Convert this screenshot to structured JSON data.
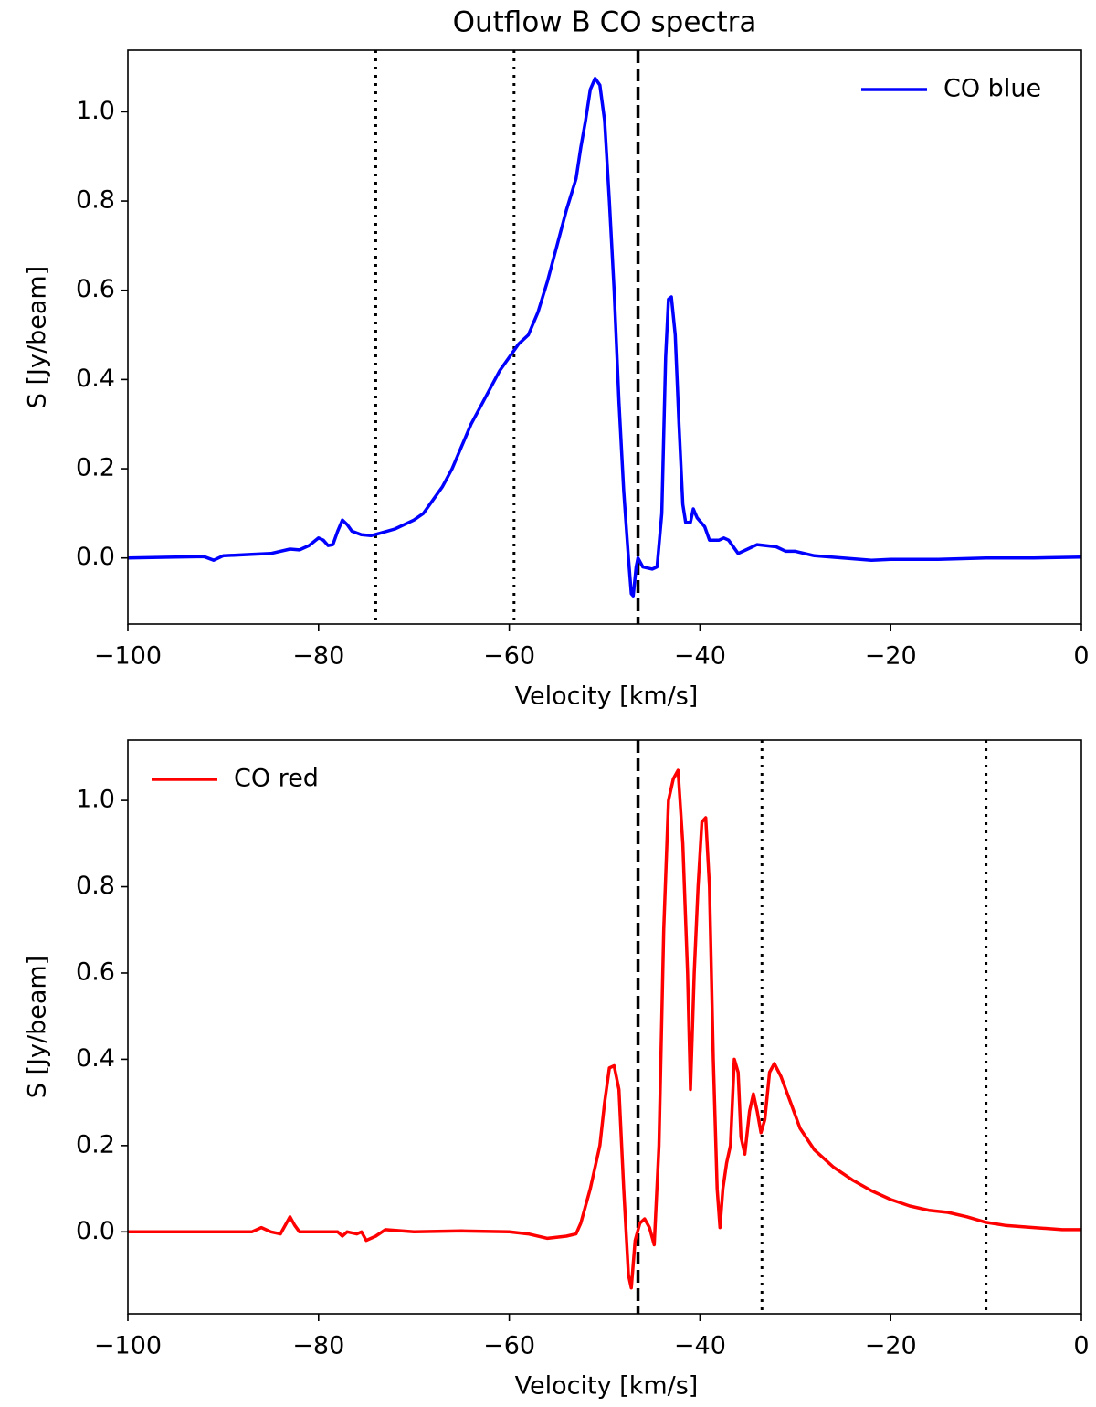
{
  "chart_data": [
    {
      "type": "line",
      "title": "Outflow B CO spectra",
      "xlabel": "Velocity [km/s]",
      "ylabel": "S [Jy/beam]",
      "xlim": [
        -100,
        0
      ],
      "ylim": [
        -0.148,
        1.138
      ],
      "xticks": [
        {
          "value": -100,
          "label": "−100"
        },
        {
          "value": -80,
          "label": "−80"
        },
        {
          "value": -60,
          "label": "−60"
        },
        {
          "value": -40,
          "label": "−40"
        },
        {
          "value": -20,
          "label": "−20"
        },
        0
      ],
      "yticks": [
        {
          "value": 0,
          "label": "0.0"
        },
        0.2,
        0.4,
        0.6,
        0.8,
        {
          "value": 1,
          "label": "1.0"
        }
      ],
      "legend": "upper right",
      "vlines": [
        {
          "x": -74,
          "style": "dotted"
        },
        {
          "x": -59.5,
          "style": "dotted"
        },
        {
          "x": -46.5,
          "style": "dashed"
        }
      ],
      "series": [
        {
          "name": "CO blue",
          "color": "#0000ff",
          "x": [
            -100,
            -95,
            -92,
            -91,
            -90,
            -87,
            -85,
            -83,
            -82,
            -81,
            -80,
            -79.5,
            -79,
            -78.5,
            -78,
            -77.5,
            -77,
            -76.5,
            -75.5,
            -74.5,
            -73.5,
            -72,
            -70,
            -69,
            -68,
            -67,
            -66,
            -65,
            -64,
            -63,
            -62,
            -61,
            -60,
            -59,
            -58,
            -57,
            -56,
            -55,
            -54,
            -53,
            -52.5,
            -52,
            -51.5,
            -51,
            -50.5,
            -50,
            -49.5,
            -49,
            -48.5,
            -48,
            -47.5,
            -47.2,
            -47,
            -46.7,
            -46.5,
            -46,
            -45,
            -44.5,
            -44,
            -43.6,
            -43.3,
            -43,
            -42.6,
            -42.2,
            -41.8,
            -41.5,
            -41,
            -40.7,
            -40.3,
            -39.5,
            -39,
            -38,
            -37.5,
            -37,
            -36,
            -35,
            -34,
            -32,
            -31,
            -30,
            -28,
            -25,
            -22,
            -20,
            -15,
            -10,
            -5,
            0
          ],
          "values": [
            0,
            0.002,
            0.003,
            -0.005,
            0.005,
            0.008,
            0.01,
            0.02,
            0.018,
            0.028,
            0.045,
            0.04,
            0.028,
            0.03,
            0.06,
            0.085,
            0.075,
            0.06,
            0.052,
            0.05,
            0.056,
            0.065,
            0.085,
            0.1,
            0.13,
            0.16,
            0.2,
            0.25,
            0.3,
            0.34,
            0.38,
            0.42,
            0.45,
            0.48,
            0.5,
            0.55,
            0.62,
            0.7,
            0.78,
            0.85,
            0.92,
            0.98,
            1.05,
            1.075,
            1.06,
            0.98,
            0.8,
            0.6,
            0.35,
            0.15,
            0,
            -0.08,
            -0.085,
            -0.02,
            0,
            -0.02,
            -0.025,
            -0.02,
            0.1,
            0.45,
            0.58,
            0.585,
            0.5,
            0.3,
            0.12,
            0.08,
            0.08,
            0.11,
            0.09,
            0.07,
            0.04,
            0.04,
            0.045,
            0.04,
            0.01,
            0.02,
            0.03,
            0.025,
            0.015,
            0.015,
            0.005,
            0,
            -0.005,
            -0.003,
            -0.003,
            0,
            0,
            0.002
          ]
        }
      ]
    },
    {
      "type": "line",
      "xlabel": "Velocity [km/s]",
      "ylabel": "S [Jy/beam]",
      "xlim": [
        -100,
        0
      ],
      "ylim": [
        -0.19,
        1.14
      ],
      "xticks": [
        {
          "value": -100,
          "label": "−100"
        },
        {
          "value": -80,
          "label": "−80"
        },
        {
          "value": -60,
          "label": "−60"
        },
        {
          "value": -40,
          "label": "−40"
        },
        {
          "value": -20,
          "label": "−20"
        },
        0
      ],
      "yticks": [
        {
          "value": 0,
          "label": "0.0"
        },
        0.2,
        0.4,
        0.6,
        0.8,
        {
          "value": 1,
          "label": "1.0"
        }
      ],
      "legend": "upper left",
      "vlines": [
        {
          "x": -46.5,
          "style": "dashed"
        },
        {
          "x": -33.5,
          "style": "dotted"
        },
        {
          "x": -10,
          "style": "dotted"
        }
      ],
      "series": [
        {
          "name": "CO red",
          "color": "#ff0000",
          "x": [
            -100,
            -95,
            -90,
            -87,
            -86,
            -85,
            -84,
            -83,
            -82.5,
            -82,
            -78,
            -77.5,
            -77,
            -76,
            -75.5,
            -75,
            -74,
            -73,
            -70,
            -65,
            -60,
            -58,
            -56,
            -54,
            -53,
            -52.5,
            -51.5,
            -50.5,
            -50,
            -49.5,
            -49,
            -48.5,
            -48,
            -47.5,
            -47.2,
            -46.8,
            -46.3,
            -45.8,
            -45.3,
            -44.8,
            -44.3,
            -43.8,
            -43.3,
            -42.8,
            -42.3,
            -41.8,
            -41.3,
            -41,
            -40.6,
            -40.2,
            -39.8,
            -39.4,
            -39,
            -38.6,
            -38.2,
            -37.9,
            -37.6,
            -37.2,
            -36.8,
            -36.4,
            -36,
            -35.7,
            -35.3,
            -34.8,
            -34.4,
            -34,
            -33.6,
            -33.2,
            -32.7,
            -32.2,
            -31.5,
            -30.5,
            -29.5,
            -28,
            -26,
            -24,
            -22,
            -20,
            -18,
            -16,
            -14,
            -12,
            -10,
            -8,
            -5,
            -2,
            0
          ],
          "values": [
            0,
            0,
            0,
            0,
            0.01,
            0,
            -0.005,
            0.035,
            0.015,
            0,
            0,
            -0.01,
            0,
            -0.005,
            0,
            -0.02,
            -0.01,
            0.005,
            0,
            0.002,
            0,
            -0.005,
            -0.015,
            -0.01,
            -0.005,
            0.02,
            0.1,
            0.2,
            0.3,
            0.38,
            0.385,
            0.33,
            0.1,
            -0.1,
            -0.13,
            -0.02,
            0.02,
            0.03,
            0.01,
            -0.03,
            0.2,
            0.7,
            1,
            1.05,
            1.07,
            0.9,
            0.6,
            0.33,
            0.6,
            0.8,
            0.95,
            0.96,
            0.8,
            0.4,
            0.1,
            0.01,
            0.1,
            0.16,
            0.2,
            0.4,
            0.37,
            0.22,
            0.18,
            0.28,
            0.32,
            0.28,
            0.23,
            0.26,
            0.37,
            0.39,
            0.36,
            0.3,
            0.24,
            0.19,
            0.15,
            0.12,
            0.095,
            0.075,
            0.06,
            0.05,
            0.045,
            0.035,
            0.022,
            0.015,
            0.01,
            0.005,
            0.005
          ]
        }
      ]
    }
  ]
}
